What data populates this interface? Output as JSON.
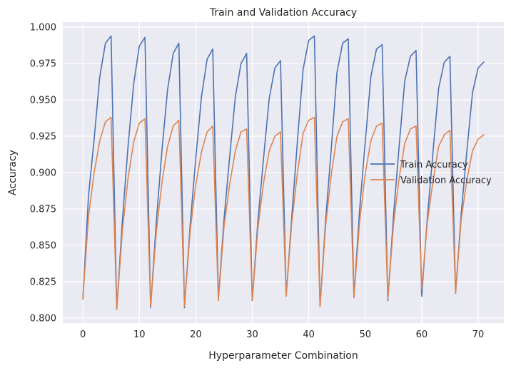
{
  "chart_data": {
    "type": "line",
    "title": "Train and Validation Accuracy",
    "xlabel": "Hyperparameter Combination",
    "ylabel": "Accuracy",
    "xlim": [
      -3.55,
      74.55
    ],
    "ylim": [
      0.7965,
      1.0035
    ],
    "xticks": [
      0,
      10,
      20,
      30,
      40,
      50,
      60,
      70
    ],
    "yticks": [
      0.8,
      0.825,
      0.85,
      0.875,
      0.9,
      0.925,
      0.95,
      0.975,
      1.0
    ],
    "ytick_labels": [
      "0.800",
      "0.825",
      "0.850",
      "0.875",
      "0.900",
      "0.925",
      "0.950",
      "0.975",
      "1.000"
    ],
    "grid": true,
    "legend_position": "center-right",
    "background": "#eaeaf2",
    "x": [
      0,
      1,
      2,
      3,
      4,
      5,
      6,
      7,
      8,
      9,
      10,
      11,
      12,
      13,
      14,
      15,
      16,
      17,
      18,
      19,
      20,
      21,
      22,
      23,
      24,
      25,
      26,
      27,
      28,
      29,
      30,
      31,
      32,
      33,
      34,
      35,
      36,
      37,
      38,
      39,
      40,
      41,
      42,
      43,
      44,
      45,
      46,
      47,
      48,
      49,
      50,
      51,
      52,
      53,
      54,
      55,
      56,
      57,
      58,
      59,
      60,
      61,
      62,
      63,
      64,
      65,
      66,
      67,
      68,
      69,
      70,
      71
    ],
    "series": [
      {
        "name": "Train Accuracy",
        "color": "#4c72b0",
        "values": [
          0.813,
          0.884,
          0.923,
          0.966,
          0.989,
          0.994,
          0.806,
          0.867,
          0.918,
          0.961,
          0.987,
          0.993,
          0.807,
          0.866,
          0.915,
          0.957,
          0.982,
          0.989,
          0.807,
          0.864,
          0.91,
          0.952,
          0.978,
          0.985,
          0.813,
          0.868,
          0.911,
          0.952,
          0.975,
          0.982,
          0.812,
          0.867,
          0.91,
          0.951,
          0.972,
          0.977,
          0.815,
          0.87,
          0.922,
          0.971,
          0.991,
          0.994,
          0.808,
          0.868,
          0.917,
          0.969,
          0.989,
          0.992,
          0.814,
          0.874,
          0.921,
          0.966,
          0.985,
          0.988,
          0.812,
          0.87,
          0.918,
          0.963,
          0.98,
          0.984,
          0.815,
          0.869,
          0.914,
          0.958,
          0.976,
          0.98,
          0.817,
          0.872,
          0.915,
          0.955,
          0.972,
          0.976
        ]
      },
      {
        "name": "Validation Accuracy",
        "color": "#dd8452",
        "values": [
          0.813,
          0.87,
          0.9,
          0.922,
          0.935,
          0.938,
          0.806,
          0.86,
          0.896,
          0.921,
          0.934,
          0.937,
          0.808,
          0.859,
          0.893,
          0.918,
          0.932,
          0.936,
          0.808,
          0.86,
          0.892,
          0.914,
          0.928,
          0.932,
          0.812,
          0.863,
          0.892,
          0.915,
          0.928,
          0.93,
          0.812,
          0.862,
          0.893,
          0.915,
          0.925,
          0.928,
          0.815,
          0.866,
          0.9,
          0.927,
          0.936,
          0.938,
          0.808,
          0.864,
          0.899,
          0.925,
          0.935,
          0.937,
          0.814,
          0.866,
          0.899,
          0.922,
          0.932,
          0.934,
          0.813,
          0.864,
          0.896,
          0.92,
          0.93,
          0.932,
          0.82,
          0.866,
          0.894,
          0.918,
          0.926,
          0.929,
          0.817,
          0.868,
          0.895,
          0.915,
          0.923,
          0.926
        ]
      }
    ]
  }
}
